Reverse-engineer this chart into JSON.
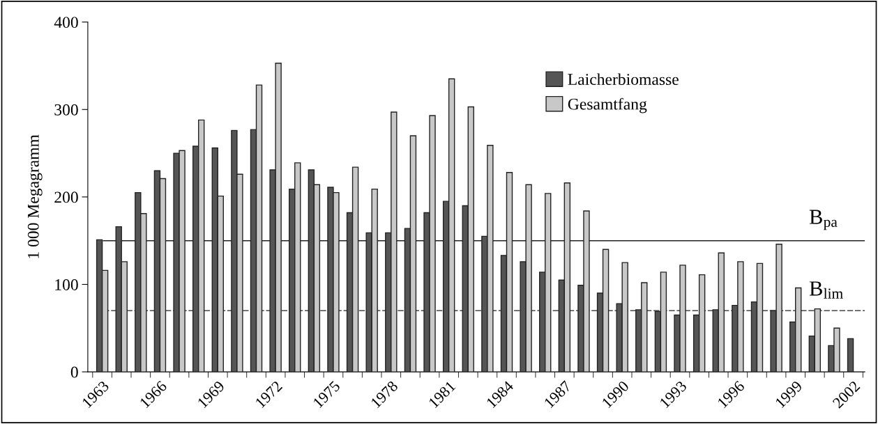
{
  "chart_data": {
    "type": "bar",
    "ylabel": "1 000 Megagramm",
    "categories": [
      "1963",
      null,
      null,
      "1966",
      null,
      null,
      "1969",
      null,
      null,
      "1972",
      null,
      null,
      "1975",
      null,
      null,
      "1978",
      null,
      null,
      "1981",
      null,
      null,
      "1984",
      null,
      null,
      "1987",
      null,
      null,
      "1990",
      null,
      null,
      "1993",
      null,
      null,
      "1996",
      null,
      null,
      "1999",
      null,
      null,
      "2002"
    ],
    "series": [
      {
        "name": "Laicherbiomasse",
        "color": "#555555",
        "values": [
          151,
          166,
          205,
          230,
          250,
          258,
          256,
          276,
          277,
          231,
          209,
          231,
          211,
          182,
          159,
          159,
          164,
          182,
          195,
          190,
          155,
          133,
          126,
          114,
          105,
          99,
          90,
          78,
          71,
          69,
          65,
          65,
          71,
          76,
          80,
          70,
          57,
          41,
          30,
          38
        ]
      },
      {
        "name": "Gesamtfang",
        "color": "#c8c8c8",
        "values": [
          116,
          126,
          181,
          221,
          253,
          288,
          201,
          226,
          328,
          353,
          239,
          214,
          205,
          234,
          209,
          297,
          270,
          293,
          335,
          303,
          259,
          228,
          214,
          204,
          216,
          184,
          140,
          125,
          102,
          114,
          122,
          111,
          136,
          126,
          124,
          146,
          96,
          72,
          50,
          null
        ]
      }
    ],
    "ylim": [
      0,
      400
    ],
    "yticks": [
      0,
      100,
      200,
      300,
      400
    ],
    "ref_lines": [
      {
        "axis": "y",
        "value": 150,
        "label": "B$_{pa}$",
        "color": "#222222",
        "line_style": "solid"
      },
      {
        "axis": "y",
        "value": 70,
        "label": "B$_{lim}$",
        "color": "#222222",
        "line_style": "dashed"
      }
    ],
    "legend": "top right",
    "grid": false
  }
}
